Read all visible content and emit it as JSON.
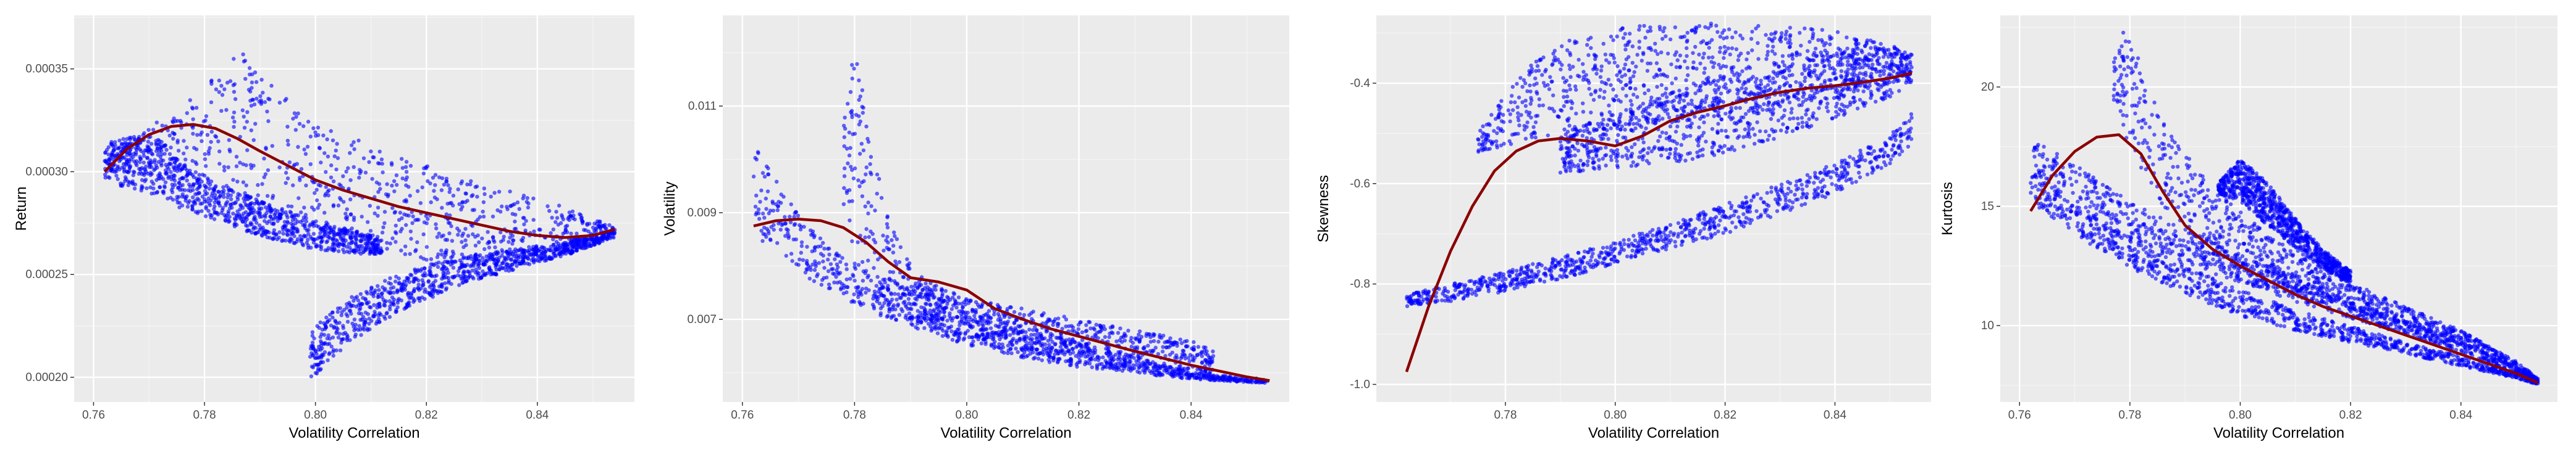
{
  "chart_data": [
    {
      "type": "scatter",
      "xlabel": "Volatility Correlation",
      "ylabel": "Return",
      "xlim": [
        0.7565,
        0.8575
      ],
      "ylim": [
        0.000188,
        0.000376
      ],
      "xticks": [
        0.76,
        0.78,
        0.8,
        0.82,
        0.84
      ],
      "xtick_labels": [
        "0.76",
        "0.78",
        "0.80",
        "0.82",
        "0.84"
      ],
      "yticks": [
        0.0002,
        0.00025,
        0.0003,
        0.00035
      ],
      "ytick_labels": [
        "0.00020",
        "0.00025",
        "0.00030",
        "0.00035"
      ],
      "grid": true,
      "point_color": "#0000ff",
      "smooth_color": "#8b0000",
      "smooth": {
        "x": [
          0.762,
          0.766,
          0.77,
          0.774,
          0.778,
          0.782,
          0.786,
          0.79,
          0.795,
          0.8,
          0.805,
          0.81,
          0.815,
          0.82,
          0.825,
          0.83,
          0.835,
          0.84,
          0.845,
          0.85,
          0.854
        ],
        "y": [
          0.0003,
          0.000311,
          0.000318,
          0.000322,
          0.000323,
          0.000321,
          0.000316,
          0.00031,
          0.000303,
          0.000296,
          0.000291,
          0.000287,
          0.000283,
          0.00028,
          0.000277,
          0.000274,
          0.000271,
          0.000269,
          0.000268,
          0.000269,
          0.000272
        ]
      },
      "bands": [
        {
          "x": [
            0.762,
            0.77,
            0.778,
            0.786,
            0.794,
            0.8,
            0.81,
            0.82,
            0.83,
            0.84,
            0.848,
            0.854
          ],
          "lower": [
            0.0003,
            0.000298,
            0.000292,
            0.000286,
            0.000278,
            0.000271,
            0.000263,
            0.000257,
            0.000254,
            0.000257,
            0.000262,
            0.00027
          ],
          "upper": [
            0.00031,
            0.000322,
            0.000336,
            0.00036,
            0.000338,
            0.000325,
            0.000313,
            0.000303,
            0.000294,
            0.000287,
            0.00028,
            0.000273
          ]
        },
        {
          "x": [
            0.762,
            0.77,
            0.778,
            0.786,
            0.794,
            0.8,
            0.806,
            0.812
          ],
          "lower": [
            0.000296,
            0.000288,
            0.00028,
            0.000272,
            0.000266,
            0.000262,
            0.00026,
            0.00026
          ],
          "upper": [
            0.000316,
            0.000318,
            0.0003,
            0.00029,
            0.000282,
            0.000276,
            0.000272,
            0.000268
          ]
        },
        {
          "x": [
            0.799,
            0.803,
            0.808,
            0.815,
            0.822,
            0.83,
            0.838,
            0.846,
            0.854
          ],
          "lower": [
            0.000198,
            0.00021,
            0.00022,
            0.000232,
            0.00024,
            0.000248,
            0.000254,
            0.00026,
            0.000268
          ],
          "upper": [
            0.000222,
            0.000232,
            0.000242,
            0.00025,
            0.000256,
            0.00026,
            0.000263,
            0.000266,
            0.000272
          ]
        }
      ]
    },
    {
      "type": "scatter",
      "xlabel": "Volatility Correlation",
      "ylabel": "Volatility",
      "xlim": [
        0.7565,
        0.8575
      ],
      "ylim": [
        0.00545,
        0.0127
      ],
      "xticks": [
        0.76,
        0.78,
        0.8,
        0.82,
        0.84
      ],
      "xtick_labels": [
        "0.76",
        "0.78",
        "0.80",
        "0.82",
        "0.84"
      ],
      "yticks": [
        0.007,
        0.009,
        0.011
      ],
      "ytick_labels": [
        "0.007",
        "0.009",
        "0.011"
      ],
      "grid": true,
      "point_color": "#0000ff",
      "smooth_color": "#8b0000",
      "smooth": {
        "x": [
          0.762,
          0.766,
          0.77,
          0.774,
          0.778,
          0.782,
          0.786,
          0.79,
          0.795,
          0.8,
          0.805,
          0.81,
          0.815,
          0.82,
          0.825,
          0.83,
          0.835,
          0.84,
          0.845,
          0.85,
          0.854
        ],
        "y": [
          0.00875,
          0.00885,
          0.00888,
          0.00885,
          0.00872,
          0.00845,
          0.00808,
          0.00778,
          0.0077,
          0.00755,
          0.0072,
          0.007,
          0.00682,
          0.00668,
          0.00654,
          0.0064,
          0.00627,
          0.00614,
          0.00603,
          0.00592,
          0.00585
        ]
      },
      "bands": [
        {
          "x": [
            0.762,
            0.766,
            0.77,
            0.775,
            0.78,
            0.79,
            0.8,
            0.81,
            0.82,
            0.83,
            0.84,
            0.85,
            0.854
          ],
          "lower": [
            0.0086,
            0.0082,
            0.0079,
            0.00755,
            0.00725,
            0.00685,
            0.00652,
            0.00628,
            0.0061,
            0.00598,
            0.00588,
            0.00582,
            0.0058
          ],
          "upper": [
            0.0104,
            0.0096,
            0.009,
            0.0084,
            0.008,
            0.0076,
            0.0072,
            0.0069,
            0.0066,
            0.0063,
            0.006,
            0.0059,
            0.00588
          ]
        },
        {
          "x": [
            0.778,
            0.78,
            0.783,
            0.786,
            0.79,
            0.795,
            0.8,
            0.81,
            0.82,
            0.83,
            0.84,
            0.844
          ],
          "lower": [
            0.009,
            0.008,
            0.0076,
            0.0073,
            0.007,
            0.0068,
            0.0066,
            0.00635,
            0.00618,
            0.00605,
            0.00592,
            0.0059
          ],
          "upper": [
            0.0106,
            0.0122,
            0.0105,
            0.009,
            0.008,
            0.0076,
            0.0074,
            0.0072,
            0.007,
            0.0068,
            0.0066,
            0.0064
          ]
        }
      ]
    },
    {
      "type": "scatter",
      "xlabel": "Volatility Correlation",
      "ylabel": "Skewness",
      "xlim": [
        0.7565,
        0.8575
      ],
      "ylim": [
        -1.035,
        -0.265
      ],
      "xticks": [
        0.78,
        0.8,
        0.82,
        0.84
      ],
      "xtick_labels": [
        "0.78",
        "0.80",
        "0.82",
        "0.84"
      ],
      "yticks": [
        -1.0,
        -0.8,
        -0.6,
        -0.4
      ],
      "ytick_labels": [
        "-1.0",
        "-0.8",
        "-0.6",
        "-0.4"
      ],
      "grid": true,
      "point_color": "#0000ff",
      "smooth_color": "#8b0000",
      "smooth": {
        "x": [
          0.762,
          0.766,
          0.77,
          0.774,
          0.778,
          0.782,
          0.786,
          0.79,
          0.795,
          0.8,
          0.805,
          0.81,
          0.815,
          0.82,
          0.825,
          0.83,
          0.835,
          0.84,
          0.845,
          0.85,
          0.854
        ],
        "y": [
          -0.975,
          -0.845,
          -0.735,
          -0.645,
          -0.575,
          -0.535,
          -0.515,
          -0.51,
          -0.515,
          -0.525,
          -0.505,
          -0.475,
          -0.458,
          -0.445,
          -0.43,
          -0.418,
          -0.41,
          -0.405,
          -0.398,
          -0.39,
          -0.38
        ]
      },
      "bands": [
        {
          "x": [
            0.762,
            0.77,
            0.78,
            0.79,
            0.8,
            0.81,
            0.82,
            0.83,
            0.84,
            0.85,
            0.854
          ],
          "lower": [
            -0.845,
            -0.835,
            -0.815,
            -0.79,
            -0.76,
            -0.73,
            -0.7,
            -0.66,
            -0.62,
            -0.56,
            -0.52
          ],
          "upper": [
            -0.82,
            -0.8,
            -0.775,
            -0.745,
            -0.715,
            -0.68,
            -0.64,
            -0.6,
            -0.56,
            -0.5,
            -0.46
          ]
        },
        {
          "x": [
            0.775,
            0.78,
            0.785,
            0.79,
            0.8,
            0.81,
            0.82,
            0.83,
            0.84,
            0.85,
            0.854
          ],
          "lower": [
            -0.54,
            -0.525,
            -0.51,
            -0.5,
            -0.49,
            -0.48,
            -0.47,
            -0.45,
            -0.43,
            -0.4,
            -0.38
          ],
          "upper": [
            -0.5,
            -0.42,
            -0.36,
            -0.32,
            -0.29,
            -0.28,
            -0.28,
            -0.285,
            -0.295,
            -0.32,
            -0.35
          ]
        },
        {
          "x": [
            0.79,
            0.8,
            0.81,
            0.82,
            0.83,
            0.84,
            0.85,
            0.854
          ],
          "lower": [
            -0.58,
            -0.57,
            -0.56,
            -0.54,
            -0.51,
            -0.47,
            -0.43,
            -0.4
          ],
          "upper": [
            -0.5,
            -0.46,
            -0.42,
            -0.38,
            -0.35,
            -0.33,
            -0.33,
            -0.34
          ]
        }
      ]
    },
    {
      "type": "scatter",
      "xlabel": "Volatility Correlation",
      "ylabel": "Kurtosis",
      "xlim": [
        0.7565,
        0.8575
      ],
      "ylim": [
        6.8,
        23.0
      ],
      "xticks": [
        0.76,
        0.78,
        0.8,
        0.82,
        0.84
      ],
      "xtick_labels": [
        "0.76",
        "0.78",
        "0.80",
        "0.82",
        "0.84"
      ],
      "yticks": [
        10,
        15,
        20
      ],
      "ytick_labels": [
        "10",
        "15",
        "20"
      ],
      "grid": true,
      "point_color": "#0000ff",
      "smooth_color": "#8b0000",
      "smooth": {
        "x": [
          0.762,
          0.766,
          0.77,
          0.774,
          0.778,
          0.782,
          0.786,
          0.79,
          0.795,
          0.8,
          0.805,
          0.81,
          0.815,
          0.82,
          0.825,
          0.83,
          0.835,
          0.84,
          0.845,
          0.85,
          0.854
        ],
        "y": [
          14.8,
          16.3,
          17.3,
          17.9,
          18.0,
          17.2,
          15.6,
          14.2,
          13.2,
          12.5,
          11.9,
          11.3,
          10.8,
          10.4,
          10.0,
          9.6,
          9.2,
          8.8,
          8.4,
          8.0,
          7.6
        ]
      },
      "bands": [
        {
          "x": [
            0.762,
            0.77,
            0.78,
            0.79,
            0.8,
            0.81,
            0.82,
            0.83,
            0.84,
            0.85,
            0.854
          ],
          "lower": [
            16.5,
            14.8,
            13.5,
            12.6,
            11.8,
            11.0,
            10.3,
            9.6,
            8.9,
            8.0,
            7.5
          ],
          "upper": [
            18.1,
            16.8,
            15.2,
            14.0,
            13.0,
            12.0,
            11.0,
            10.2,
            9.4,
            8.3,
            7.7
          ]
        },
        {
          "x": [
            0.762,
            0.77,
            0.78,
            0.79,
            0.8,
            0.81,
            0.82,
            0.83,
            0.84,
            0.85,
            0.854
          ],
          "lower": [
            15.2,
            13.8,
            12.4,
            11.3,
            10.4,
            9.8,
            9.3,
            8.8,
            8.3,
            7.8,
            7.5
          ],
          "upper": [
            16.5,
            15.0,
            13.6,
            12.5,
            11.5,
            10.7,
            10.0,
            9.3,
            8.7,
            8.0,
            7.6
          ]
        },
        {
          "x": [
            0.777,
            0.779,
            0.782,
            0.786,
            0.79,
            0.795,
            0.8,
            0.81,
            0.82,
            0.83,
            0.84,
            0.85,
            0.854
          ],
          "lower": [
            19.5,
            18.0,
            16.5,
            15.0,
            14.0,
            13.0,
            12.4,
            11.5,
            10.7,
            10.0,
            9.2,
            8.2,
            7.6
          ],
          "upper": [
            21.0,
            22.5,
            21.0,
            18.8,
            17.2,
            15.8,
            14.8,
            13.0,
            11.8,
            10.8,
            9.8,
            8.5,
            7.8
          ]
        },
        {
          "x": [
            0.796,
            0.8,
            0.805,
            0.81,
            0.815,
            0.82
          ],
          "lower": [
            15.5,
            15.2,
            14.2,
            13.2,
            12.4,
            11.8
          ],
          "upper": [
            16.0,
            17.0,
            16.0,
            14.5,
            13.2,
            12.3
          ]
        }
      ]
    }
  ]
}
